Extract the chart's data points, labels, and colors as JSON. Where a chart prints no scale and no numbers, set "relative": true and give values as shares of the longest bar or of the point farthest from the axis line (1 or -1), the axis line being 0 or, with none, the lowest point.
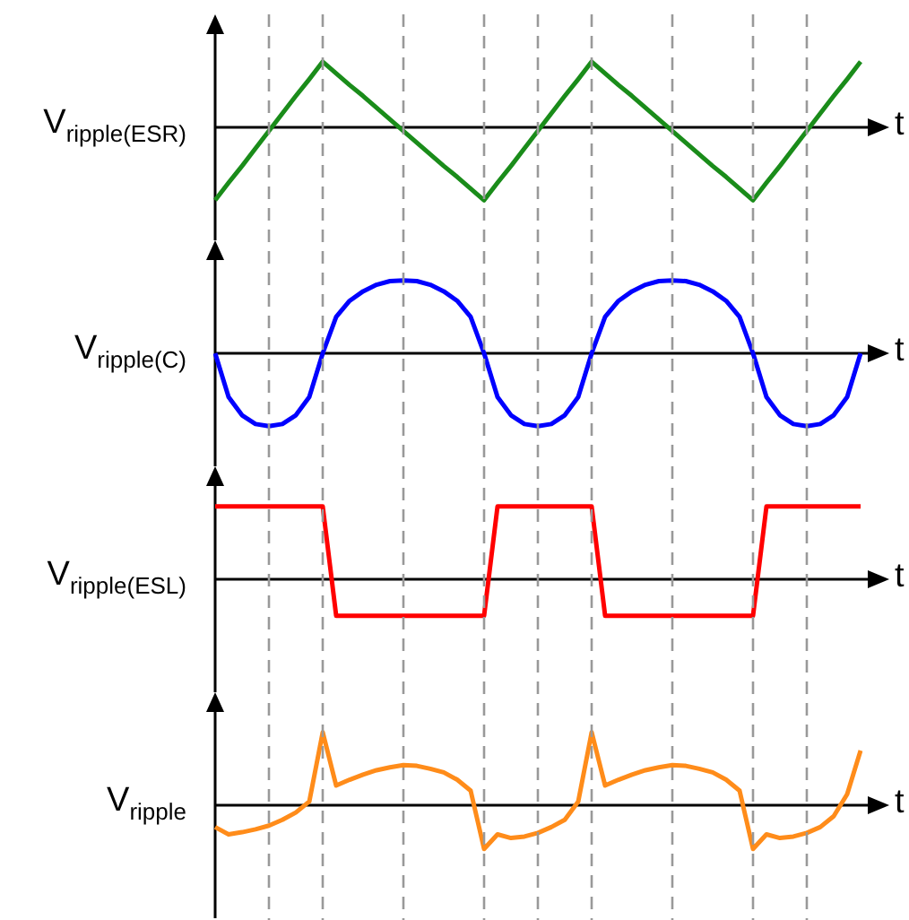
{
  "chart_data": [
    {
      "type": "line",
      "ylabel": "V$_{ripple(ESR)}$",
      "xlabel": "t",
      "relative": true,
      "tick_labels": false,
      "grid": "x",
      "categories": [
        null,
        null,
        null,
        null,
        null,
        null,
        null,
        null,
        null,
        null,
        null,
        null,
        null,
        null,
        null,
        null,
        null,
        null,
        null,
        null,
        null,
        null,
        null,
        null,
        null,
        null,
        null,
        null,
        null,
        null,
        null,
        null,
        null,
        null,
        null,
        null,
        null,
        null,
        null,
        null,
        null,
        null,
        null,
        null,
        null,
        null,
        null,
        null,
        null
      ],
      "series": [
        {
          "color": "#1a8c1a",
          "values": [
            -1,
            -0.76,
            -0.53,
            -0.29,
            -0.05,
            0.19,
            0.43,
            0.66,
            0.9,
            0.74,
            0.58,
            0.43,
            0.27,
            0.11,
            -0.05,
            -0.21,
            -0.37,
            -0.53,
            -0.68,
            -0.84,
            -1,
            -0.76,
            -0.53,
            -0.29,
            -0.05,
            0.19,
            0.43,
            0.66,
            0.9,
            0.74,
            0.58,
            0.43,
            0.27,
            0.11,
            -0.05,
            -0.21,
            -0.37,
            -0.53,
            -0.68,
            -0.84,
            -1,
            -0.76,
            -0.53,
            -0.29,
            -0.05,
            0.19,
            0.43,
            0.66,
            0.9
          ]
        }
      ]
    },
    {
      "type": "line",
      "ylabel": "V$_{ripple(C)}$",
      "xlabel": "t",
      "relative": true,
      "tick_labels": false,
      "grid": "x",
      "categories": [
        null,
        null,
        null,
        null,
        null,
        null,
        null,
        null,
        null,
        null,
        null,
        null,
        null,
        null,
        null,
        null,
        null,
        null,
        null,
        null,
        null,
        null,
        null,
        null,
        null,
        null,
        null,
        null,
        null,
        null,
        null,
        null,
        null,
        null,
        null,
        null,
        null,
        null,
        null,
        null,
        null,
        null,
        null,
        null,
        null,
        null,
        null,
        null,
        null
      ],
      "series": [
        {
          "color": "#0000ff",
          "values": [
            0,
            -0.6,
            -0.85,
            -0.97,
            -1,
            -0.97,
            -0.85,
            -0.6,
            0,
            0.5,
            0.72,
            0.85,
            0.94,
            0.99,
            1,
            0.99,
            0.94,
            0.85,
            0.72,
            0.5,
            0,
            -0.6,
            -0.85,
            -0.97,
            -1,
            -0.97,
            -0.85,
            -0.6,
            0,
            0.5,
            0.72,
            0.85,
            0.94,
            0.99,
            1,
            0.99,
            0.94,
            0.85,
            0.72,
            0.5,
            0,
            -0.6,
            -0.85,
            -0.97,
            -1,
            -0.97,
            -0.85,
            -0.6,
            0
          ]
        }
      ]
    },
    {
      "type": "line",
      "ylabel": "V$_{ripple(ESL)}$",
      "xlabel": "t",
      "relative": true,
      "tick_labels": false,
      "grid": "x",
      "categories": [
        null,
        null,
        null,
        null,
        null,
        null,
        null,
        null,
        null,
        null,
        null,
        null,
        null,
        null,
        null,
        null,
        null,
        null,
        null,
        null,
        null,
        null,
        null,
        null,
        null,
        null,
        null,
        null,
        null,
        null,
        null,
        null,
        null,
        null,
        null,
        null,
        null,
        null,
        null,
        null,
        null,
        null,
        null,
        null,
        null,
        null,
        null,
        null,
        null
      ],
      "series": [
        {
          "color": "#ff0000",
          "values": [
            1,
            1,
            1,
            1,
            1,
            1,
            1,
            1,
            1,
            -0.5,
            -0.5,
            -0.5,
            -0.5,
            -0.5,
            -0.5,
            -0.5,
            -0.5,
            -0.5,
            -0.5,
            -0.5,
            -0.5,
            1,
            1,
            1,
            1,
            1,
            1,
            1,
            1,
            -0.5,
            -0.5,
            -0.5,
            -0.5,
            -0.5,
            -0.5,
            -0.5,
            -0.5,
            -0.5,
            -0.5,
            -0.5,
            -0.5,
            1,
            1,
            1,
            1,
            1,
            1,
            1,
            1
          ]
        }
      ]
    },
    {
      "type": "line",
      "ylabel": "V$_{ripple}$",
      "xlabel": "t",
      "relative": true,
      "tick_labels": false,
      "grid": "x",
      "categories": [
        null,
        null,
        null,
        null,
        null,
        null,
        null,
        null,
        null,
        null,
        null,
        null,
        null,
        null,
        null,
        null,
        null,
        null,
        null,
        null,
        null,
        null,
        null,
        null,
        null,
        null,
        null,
        null,
        null,
        null,
        null,
        null,
        null,
        null,
        null,
        null,
        null,
        null,
        null,
        null,
        null,
        null,
        null,
        null,
        null,
        null,
        null,
        null,
        null
      ],
      "series": [
        {
          "color": "#ff8c1a",
          "values": [
            -0.3,
            -0.4,
            -0.37,
            -0.33,
            -0.28,
            -0.2,
            -0.1,
            0.05,
            1,
            0.27,
            0.35,
            0.42,
            0.48,
            0.52,
            0.55,
            0.54,
            0.5,
            0.45,
            0.35,
            0.2,
            -0.6,
            -0.4,
            -0.45,
            -0.43,
            -0.38,
            -0.3,
            -0.2,
            0.05,
            1,
            0.27,
            0.35,
            0.42,
            0.48,
            0.52,
            0.55,
            0.54,
            0.5,
            0.45,
            0.35,
            0.2,
            -0.6,
            -0.4,
            -0.45,
            -0.43,
            -0.38,
            -0.3,
            -0.15,
            0.15,
            0.75
          ]
        }
      ]
    }
  ]
}
